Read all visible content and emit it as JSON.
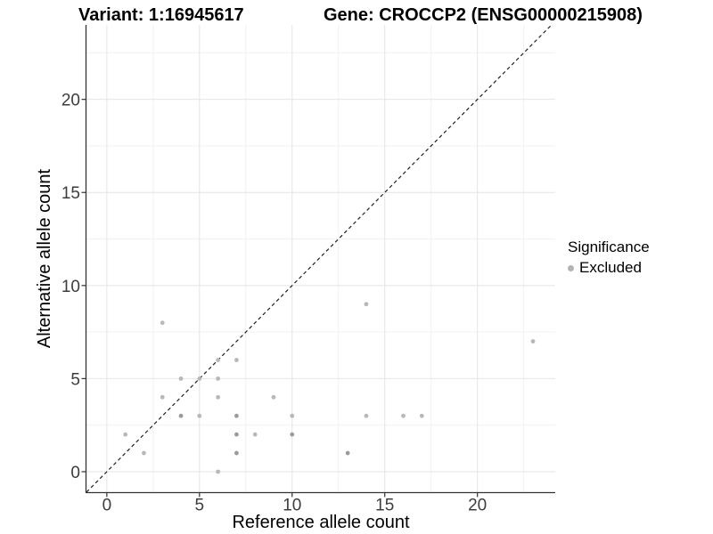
{
  "header": {
    "left_title": "Variant: 1:16945617",
    "right_title": "Gene: CROCCP2 (ENSG00000215908)"
  },
  "chart_data": {
    "type": "scatter",
    "xlabel": "Reference allele count",
    "ylabel": "Alternative allele count",
    "xlim": [
      -1.1,
      24.2
    ],
    "ylim": [
      -1.1,
      24.0
    ],
    "x_ticks": [
      0,
      5,
      10,
      15,
      20
    ],
    "y_ticks": [
      0,
      5,
      10,
      15,
      20
    ],
    "x_minor_ticks": [
      2.5,
      7.5,
      12.5,
      17.5,
      22.5
    ],
    "y_minor_ticks": [
      2.5,
      7.5,
      12.5,
      17.5,
      22.5
    ],
    "grid": true,
    "identity_line": {
      "style": "dashed",
      "from": -1.1,
      "to": 24.0
    },
    "series": [
      {
        "name": "Excluded",
        "points": [
          [
            1,
            2
          ],
          [
            2,
            1
          ],
          [
            3,
            4
          ],
          [
            3,
            8
          ],
          [
            4,
            3,
            "dark"
          ],
          [
            4,
            5
          ],
          [
            5,
            3
          ],
          [
            5,
            5
          ],
          [
            6,
            0
          ],
          [
            6,
            4
          ],
          [
            6,
            5
          ],
          [
            6,
            6
          ],
          [
            7,
            1,
            "dark"
          ],
          [
            7,
            2,
            "dark"
          ],
          [
            7,
            3,
            "dark"
          ],
          [
            7,
            6
          ],
          [
            8,
            2
          ],
          [
            9,
            4
          ],
          [
            10,
            2,
            "dark"
          ],
          [
            10,
            3
          ],
          [
            13,
            1,
            "dark"
          ],
          [
            14,
            3
          ],
          [
            14,
            9
          ],
          [
            16,
            3
          ],
          [
            17,
            3
          ],
          [
            23,
            7
          ]
        ]
      }
    ],
    "legend": {
      "title": "Significance",
      "position": "right",
      "items": [
        {
          "label": "Excluded",
          "color": "#b3b3b3"
        }
      ]
    }
  },
  "colors": {
    "point": "#b8b8b8",
    "point_dark": "#9b9b9b",
    "grid_major": "#e4e4e4",
    "grid_minor": "#f1f1f1",
    "axis_line": "#333333",
    "tick_label": "#3d3d3d",
    "dashed_line": "#1f1f1f",
    "legend_dot": "#b3b3b3"
  }
}
